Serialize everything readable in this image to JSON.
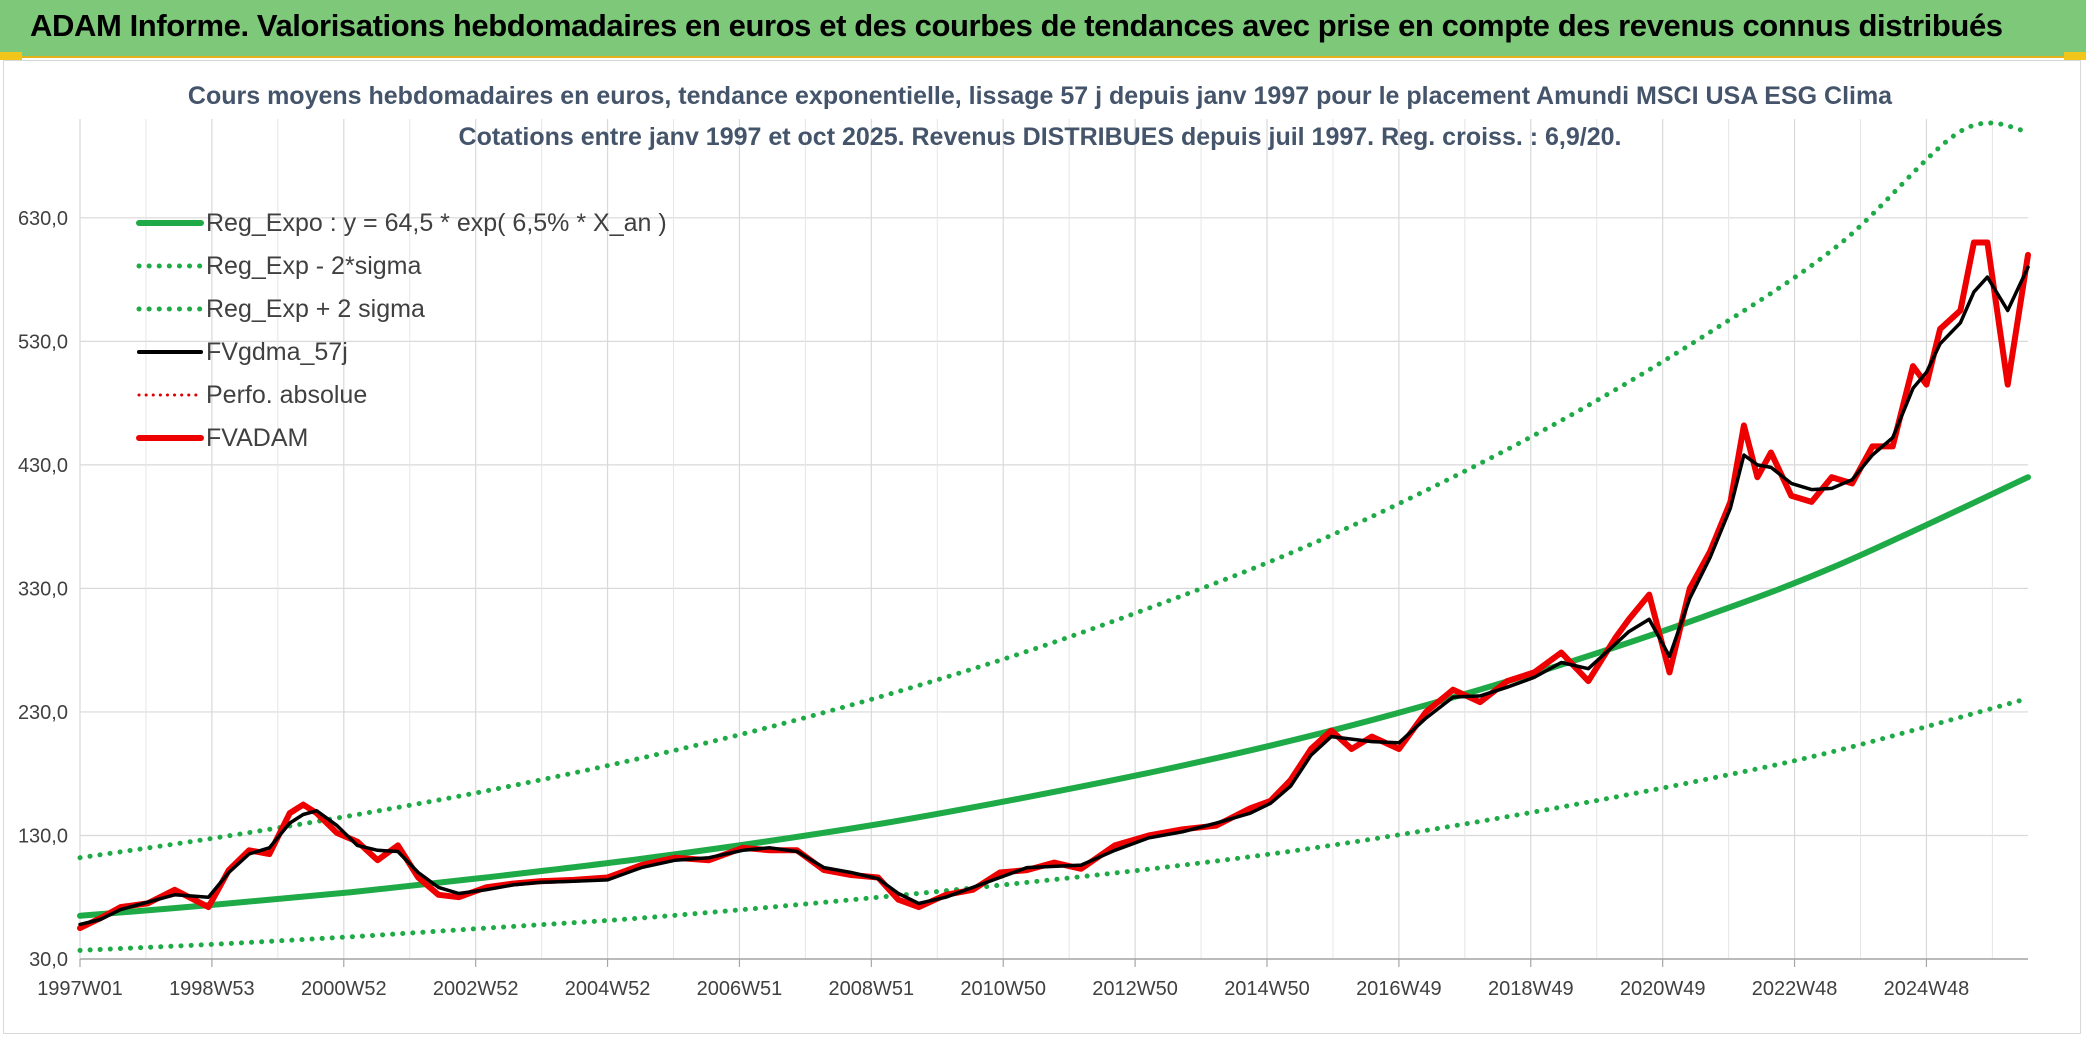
{
  "header": {
    "title": "ADAM Informe. Valorisations hebdomadaires en euros et des courbes de tendances avec prise en compte des revenus connus distribués"
  },
  "colors": {
    "header_bg": "#7ec87a",
    "accent_yellow": "#f2c51b",
    "reg_expo": "#1faa48",
    "sigma_bands": "#1faa48",
    "fvgdma": "#000000",
    "perfo": "#e00000",
    "fvadam": "#ee0000"
  },
  "chart_data": {
    "type": "line",
    "title": "Cours moyens hebdomadaires en euros, tendance exponentielle, lissage 57 j depuis janv 1997 pour le placement Amundi MSCI USA ESG Clima",
    "subtitle": "Cotations entre janv 1997 et oct 2025. Revenus DISTRIBUES depuis juil 1997. Reg. croiss. : 6,9/20.",
    "xlabel": "",
    "ylabel": "",
    "x_tick_labels": [
      "1997W01",
      "1998W53",
      "2000W52",
      "2002W52",
      "2004W52",
      "2006W51",
      "2008W51",
      "2010W50",
      "2012W50",
      "2014W50",
      "2016W49",
      "2018W49",
      "2020W49",
      "2022W48",
      "2024W48"
    ],
    "x_range_years": [
      1997.0,
      2025.8
    ],
    "y_tick_labels": [
      "30,0",
      "130,0",
      "230,0",
      "330,0",
      "430,0",
      "530,0",
      "630,0"
    ],
    "ylim": [
      30,
      710
    ],
    "grid": true,
    "legend_position": "top-left",
    "legend": [
      {
        "label": "Reg_Expo : y = 64,5 * exp( 6,5% *  X_an )",
        "style": "solid-thick",
        "color": "#1faa48"
      },
      {
        "label": "Reg_Exp - 2*sigma",
        "style": "dotted",
        "color": "#1faa48"
      },
      {
        "label": "Reg_Exp + 2 sigma",
        "style": "dotted",
        "color": "#1faa48"
      },
      {
        "label": "FVgdma_57j",
        "style": "solid",
        "color": "#000000"
      },
      {
        "label": "Perfo. absolue",
        "style": "dotted-thin",
        "color": "#e00000"
      },
      {
        "label": "FVADAM",
        "style": "solid-thick",
        "color": "#ee0000"
      }
    ],
    "series": [
      {
        "name": "Reg_Expo : y = 64,5 * exp( 6,5% *  X_an )",
        "x": [
          1997.0,
          1999.0,
          2001.0,
          2003.0,
          2005.0,
          2007.0,
          2009.0,
          2011.0,
          2013.0,
          2015.0,
          2017.0,
          2019.0,
          2021.0,
          2023.0,
          2025.8
        ],
        "y": [
          65,
          74,
          84,
          96,
          109,
          124,
          141,
          161,
          183,
          208,
          237,
          270,
          307,
          349,
          420
        ]
      },
      {
        "name": "Reg_Exp - 2*sigma",
        "x": [
          1997.0,
          1999.0,
          2001.0,
          2003.0,
          2005.0,
          2007.0,
          2009.0,
          2011.0,
          2013.0,
          2015.0,
          2017.0,
          2019.0,
          2021.0,
          2023.0,
          2025.8
        ],
        "y": [
          37,
          42,
          48,
          55,
          62,
          71,
          81,
          92,
          104,
          118,
          135,
          154,
          175,
          199,
          241
        ]
      },
      {
        "name": "Reg_Exp + 2 sigma",
        "x": [
          1997.0,
          1999.0,
          2001.0,
          2003.0,
          2005.0,
          2007.0,
          2009.0,
          2011.0,
          2013.0,
          2015.0,
          2017.0,
          2019.0,
          2021.0,
          2023.0,
          2024.8,
          2025.8
        ],
        "y": [
          112,
          128,
          146,
          166,
          189,
          215,
          245,
          279,
          318,
          361,
          412,
          469,
          534,
          608,
          700,
          700
        ]
      },
      {
        "name": "FVgdma_57j",
        "x": [
          1997.0,
          1997.3,
          1997.6,
          1998.0,
          1998.4,
          1998.9,
          1999.2,
          1999.5,
          1999.8,
          2000.1,
          2000.3,
          2000.5,
          2000.8,
          2001.1,
          2001.4,
          2001.7,
          2002.0,
          2002.3,
          2002.6,
          2003.0,
          2003.4,
          2003.8,
          2004.3,
          2004.8,
          2005.3,
          2005.8,
          2006.3,
          2006.8,
          2007.2,
          2007.6,
          2008.0,
          2008.4,
          2008.8,
          2009.1,
          2009.4,
          2009.8,
          2010.2,
          2010.6,
          2011.0,
          2011.4,
          2011.8,
          2012.3,
          2012.8,
          2013.3,
          2013.8,
          2014.3,
          2014.6,
          2014.9,
          2015.2,
          2015.5,
          2015.8,
          2016.1,
          2016.5,
          2016.9,
          2017.3,
          2017.7,
          2018.1,
          2018.5,
          2018.9,
          2019.3,
          2019.7,
          2019.9,
          2020.2,
          2020.5,
          2020.8,
          2021.1,
          2021.4,
          2021.6,
          2021.8,
          2022.0,
          2022.3,
          2022.6,
          2022.9,
          2023.2,
          2023.5,
          2023.8,
          2024.1,
          2024.3,
          2024.5,
          2024.8,
          2025.0,
          2025.2,
          2025.5,
          2025.8
        ],
        "y": [
          58,
          62,
          70,
          76,
          82,
          80,
          100,
          115,
          120,
          140,
          147,
          150,
          138,
          122,
          118,
          117,
          100,
          88,
          83,
          86,
          90,
          92,
          93,
          94,
          104,
          110,
          112,
          118,
          120,
          117,
          104,
          100,
          95,
          83,
          75,
          80,
          88,
          96,
          104,
          105,
          106,
          118,
          128,
          133,
          140,
          148,
          156,
          170,
          195,
          210,
          208,
          206,
          205,
          225,
          242,
          243,
          250,
          258,
          270,
          265,
          285,
          295,
          305,
          275,
          322,
          355,
          395,
          438,
          430,
          428,
          415,
          410,
          411,
          418,
          438,
          452,
          492,
          505,
          528,
          545,
          570,
          582,
          555,
          590
        ]
      },
      {
        "name": "FVADAM",
        "x": [
          1997.0,
          1997.3,
          1997.6,
          1998.0,
          1998.4,
          1998.9,
          1999.2,
          1999.5,
          1999.8,
          2000.1,
          2000.3,
          2000.5,
          2000.8,
          2001.1,
          2001.4,
          2001.7,
          2002.0,
          2002.3,
          2002.6,
          2003.0,
          2003.4,
          2003.8,
          2004.3,
          2004.8,
          2005.3,
          2005.8,
          2006.3,
          2006.8,
          2007.2,
          2007.6,
          2008.0,
          2008.4,
          2008.8,
          2009.1,
          2009.4,
          2009.8,
          2010.2,
          2010.6,
          2011.0,
          2011.4,
          2011.8,
          2012.3,
          2012.8,
          2013.3,
          2013.8,
          2014.3,
          2014.6,
          2014.9,
          2015.2,
          2015.5,
          2015.8,
          2016.1,
          2016.5,
          2016.9,
          2017.3,
          2017.7,
          2018.1,
          2018.5,
          2018.9,
          2019.3,
          2019.7,
          2019.9,
          2020.2,
          2020.5,
          2020.8,
          2021.1,
          2021.4,
          2021.6,
          2021.8,
          2022.0,
          2022.3,
          2022.6,
          2022.9,
          2023.2,
          2023.5,
          2023.8,
          2024.1,
          2024.3,
          2024.5,
          2024.8,
          2025.0,
          2025.2,
          2025.5,
          2025.8
        ],
        "y": [
          55,
          63,
          72,
          75,
          86,
          72,
          102,
          118,
          115,
          148,
          155,
          148,
          132,
          125,
          110,
          122,
          96,
          82,
          80,
          88,
          91,
          93,
          94,
          96,
          106,
          112,
          110,
          120,
          118,
          118,
          102,
          98,
          96,
          78,
          72,
          82,
          86,
          100,
          102,
          108,
          103,
          122,
          130,
          135,
          138,
          152,
          158,
          175,
          200,
          215,
          200,
          210,
          200,
          230,
          248,
          238,
          255,
          262,
          278,
          255,
          290,
          305,
          325,
          262,
          330,
          360,
          400,
          462,
          420,
          440,
          405,
          400,
          420,
          415,
          445,
          445,
          510,
          495,
          540,
          555,
          610,
          610,
          495,
          600
        ]
      }
    ]
  }
}
